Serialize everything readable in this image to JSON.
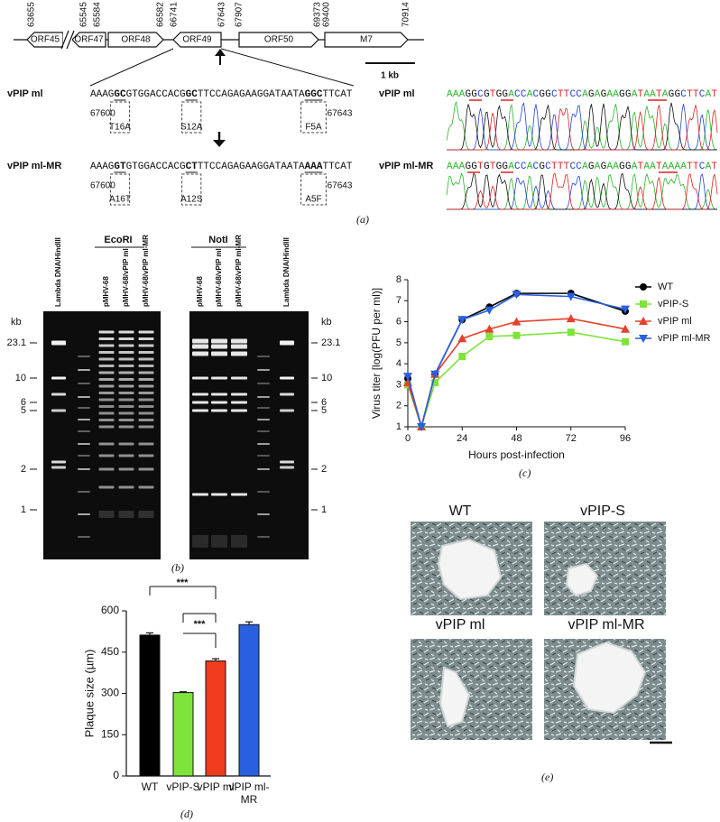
{
  "panel_a": {
    "map_positions": [
      63655,
      65545,
      65584,
      66582,
      66741,
      67643,
      67907,
      69373,
      69400,
      70914
    ],
    "orfs": [
      "ORF45",
      "ORF47",
      "ORF48",
      "ORF49",
      "ORF50",
      "M7"
    ],
    "scale": "1 kb",
    "rows": [
      {
        "name": "vPIP ml",
        "sequence_parts": [
          "AAAG",
          "GC",
          "GTGGACCACG",
          "GC",
          "TTCCAGAGAAGGATAATA",
          "GGC",
          "TTCAT"
        ],
        "start": 67600,
        "end": 67643,
        "mutations": [
          "T16A",
          "S12A",
          "F5A"
        ],
        "trace_sequence": "AAAGGCGTGGACCACGGCTTCCAGAGAAGGATAATAGGCTTCAT"
      },
      {
        "name": "vPIP ml-MR",
        "sequence_parts": [
          "AAAG",
          "GT",
          "GTGGACCACG",
          "CT",
          "TTCCAGAGAAGGATAATA",
          "AAA",
          "TTCAT"
        ],
        "start": 67600,
        "end": 67643,
        "mutations": [
          "A16T",
          "A12S",
          "A5F"
        ],
        "trace_sequence": "AAAGGTGTGGACCACGCTTTCCAGAGAAGGATAATAAAATTCAT"
      }
    ],
    "caption": "(a)"
  },
  "panel_b": {
    "enzymes": [
      "EcoRI",
      "NotI"
    ],
    "lanes_left": [
      "Lambda DNA/HindIII",
      "pMHV-68",
      "pMHV-68/vPIP ml",
      "pMHV-68/vPIP ml-MR"
    ],
    "lanes_right": [
      "pMHV-68",
      "pMHV-68/vPIP ml",
      "pMHV-68/vPIP ml-MR",
      "Lambda DNA/HindIII"
    ],
    "unit": "kb",
    "sizes": [
      23.1,
      10,
      6,
      5,
      2,
      1
    ],
    "caption": "(b)"
  },
  "chart_data": [
    {
      "type": "line",
      "caption": "(c)",
      "x_label": "Hours post-infection",
      "y_label": "Virus titer [log(PFU per ml)]",
      "x": [
        0,
        6,
        12,
        24,
        36,
        48,
        72,
        96
      ],
      "xlim": [
        0,
        96
      ],
      "xticks": [
        0,
        24,
        48,
        72,
        96
      ],
      "ylim": [
        1,
        8
      ],
      "yticks": [
        1,
        2,
        3,
        4,
        5,
        6,
        7,
        8
      ],
      "legend": "right",
      "series": [
        {
          "name": "WT",
          "color": "#000000",
          "marker": "circle",
          "values": [
            3.3,
            1,
            3.5,
            6.1,
            6.7,
            7.35,
            7.35,
            6.5
          ]
        },
        {
          "name": "vPIP-S",
          "color": "#7ee33a",
          "marker": "square",
          "values": [
            3.0,
            1,
            3.1,
            4.35,
            5.3,
            5.35,
            5.5,
            5.05
          ]
        },
        {
          "name": "vPIP ml",
          "color": "#e8402a",
          "marker": "triangle-up",
          "values": [
            3.1,
            1,
            3.5,
            5.2,
            5.65,
            6.0,
            6.15,
            5.65
          ]
        },
        {
          "name": "vPIP ml-MR",
          "color": "#2a5fe0",
          "marker": "triangle-down",
          "values": [
            3.4,
            1,
            3.5,
            6.1,
            6.55,
            7.3,
            7.2,
            6.6
          ]
        }
      ]
    },
    {
      "type": "bar",
      "caption": "(d)",
      "y_label": "Plaque size (µm)",
      "categories": [
        "WT",
        "vPIP-S",
        "vPIP ml",
        "vPIP ml-MR"
      ],
      "values": [
        512,
        303,
        418,
        550
      ],
      "errors": [
        8,
        3,
        8,
        10
      ],
      "colors": [
        "#000000",
        "#7ee33a",
        "#f03c1e",
        "#2a5fe0"
      ],
      "ylim": [
        0,
        600
      ],
      "yticks": [
        0,
        150,
        300,
        450,
        600
      ],
      "annotations": [
        "***",
        "***"
      ]
    }
  ],
  "panel_e": {
    "titles": [
      "WT",
      "vPIP-S",
      "vPIP ml",
      "vPIP ml-MR"
    ],
    "caption": "(e)"
  }
}
